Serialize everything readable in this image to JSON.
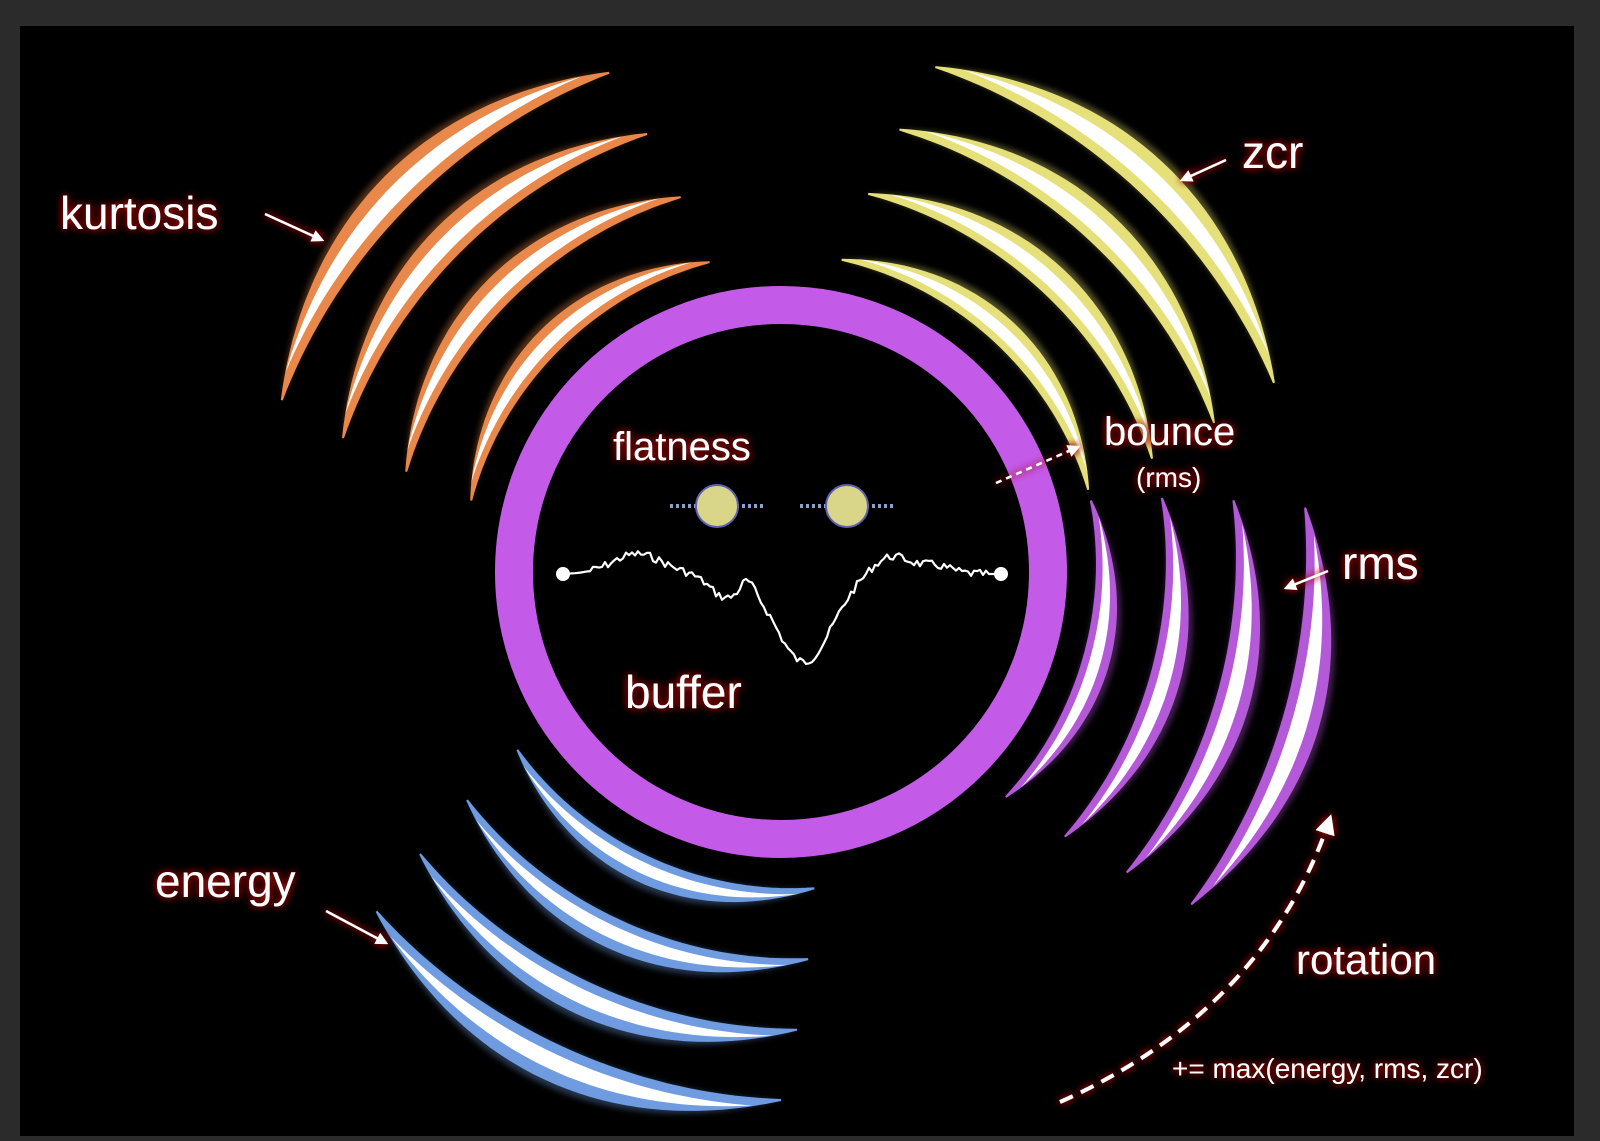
{
  "labels": {
    "kurtosis": "kurtosis",
    "zcr": "zcr",
    "bounce": "bounce",
    "bounce_sub": "(rms)",
    "rms": "rms",
    "flatness": "flatness",
    "buffer": "buffer",
    "energy": "energy",
    "rotation": "rotation",
    "formula": "+= max(energy, rms, zcr)"
  },
  "colors": {
    "background": "#000000",
    "kurtosis": "#e8884a",
    "zcr": "#e6e07a",
    "rms": "#b45ad8",
    "energy": "#6f9be0",
    "ring": "#c45ae8",
    "eye_fill": "#d9d68a",
    "label_glow": "#a01010",
    "label_text": "#ffffff",
    "arrow": "#ffffff"
  },
  "groups": [
    {
      "name": "kurtosis",
      "crescent_count": 4
    },
    {
      "name": "zcr",
      "crescent_count": 4
    },
    {
      "name": "rms",
      "crescent_count": 4
    },
    {
      "name": "energy",
      "crescent_count": 4
    }
  ],
  "icons": {
    "eyes": "circle-eye-icon",
    "arrows": "arrow-icon"
  }
}
